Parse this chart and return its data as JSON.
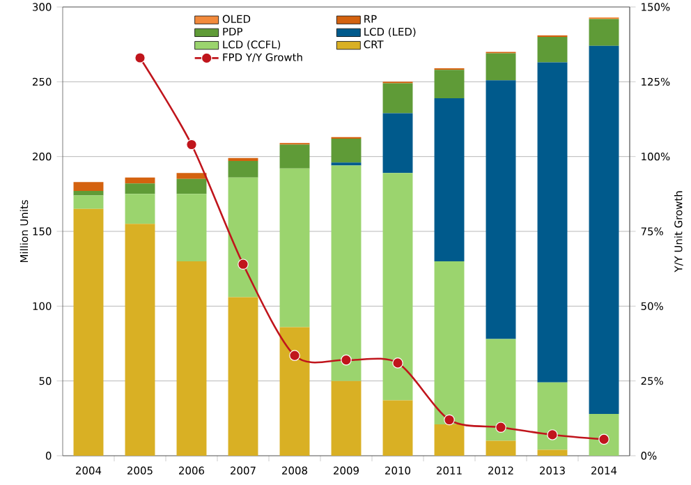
{
  "chart_data": {
    "type": "bar",
    "stacked": true,
    "ylabel": "Million Units",
    "y2label": "Y/Y Unit Growth",
    "categories": [
      "2004",
      "2005",
      "2006",
      "2007",
      "2008",
      "2009",
      "2010",
      "2011",
      "2012",
      "2013",
      "2014"
    ],
    "series": [
      {
        "name": "CRT",
        "color": "#d9b024",
        "values": [
          165,
          155,
          130,
          106,
          86,
          50,
          37,
          21,
          10,
          4,
          0
        ]
      },
      {
        "name": "LCD (CCFL)",
        "color": "#9bd46e",
        "values": [
          9,
          20,
          45,
          80,
          106,
          144,
          152,
          109,
          68,
          45,
          28
        ]
      },
      {
        "name": "LCD (LED)",
        "color": "#005a8c",
        "values": [
          0,
          0,
          0,
          0,
          0,
          2,
          40,
          109,
          173,
          214,
          246
        ]
      },
      {
        "name": "PDP",
        "color": "#5f9b37",
        "values": [
          3,
          7,
          10,
          11,
          16,
          16,
          20,
          19,
          18,
          17,
          18
        ]
      },
      {
        "name": "RP",
        "color": "#d4620f",
        "values": [
          6,
          4,
          4,
          2,
          1,
          1,
          1,
          1,
          1,
          1,
          0
        ]
      },
      {
        "name": "OLED",
        "color": "#f28a3c",
        "values": [
          0,
          0,
          0,
          0,
          0,
          0,
          0,
          0,
          0,
          0,
          1
        ]
      },
      {
        "name": "FPD Y/Y Growth",
        "type": "line",
        "axis": "y2",
        "color": "#c0151c",
        "values": [
          null,
          133,
          104,
          64,
          33.5,
          32,
          31,
          12,
          9.5,
          7,
          5.5
        ]
      }
    ],
    "ylim": [
      0,
      300
    ],
    "yticks": [
      0,
      50,
      100,
      150,
      200,
      250,
      300
    ],
    "y2lim": [
      0,
      150
    ],
    "y2ticks": [
      {
        "value": 0,
        "label": "0%"
      },
      {
        "value": 25,
        "label": "25%"
      },
      {
        "value": 50,
        "label": "50%"
      },
      {
        "value": 75,
        "label": "75%"
      },
      {
        "value": 100,
        "label": "100%"
      },
      {
        "value": 125,
        "label": "125%"
      },
      {
        "value": 150,
        "label": "150%"
      }
    ],
    "grid": "y",
    "legend": "top",
    "marker": "circle",
    "line_style": "solid"
  }
}
